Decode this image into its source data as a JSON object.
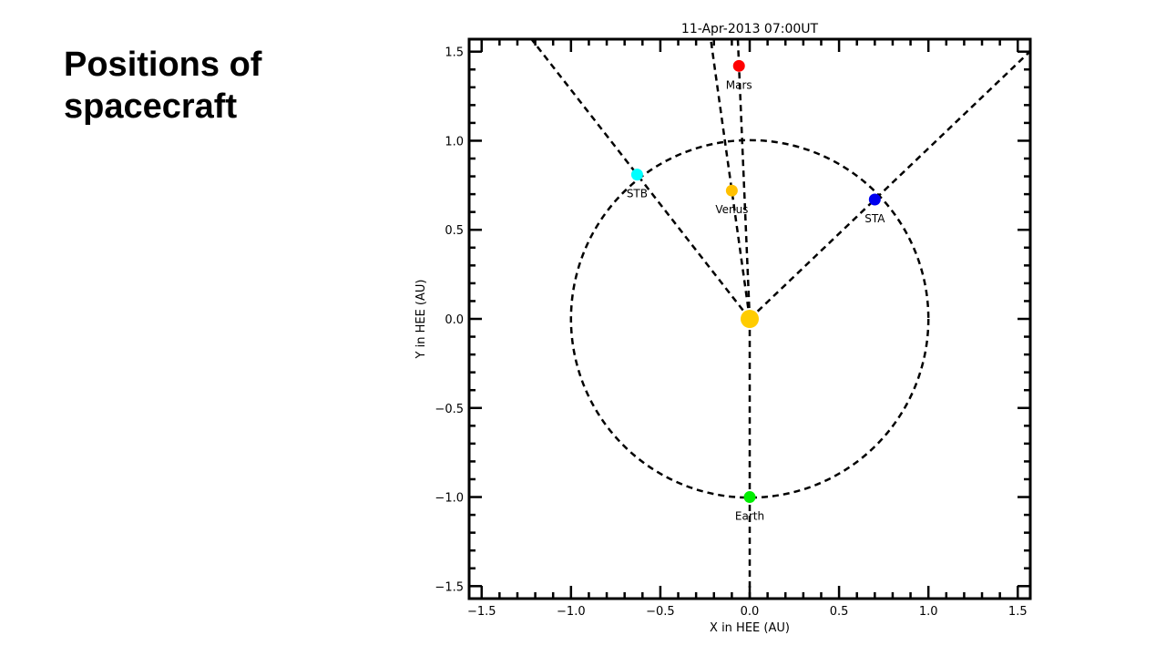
{
  "slide": {
    "title": "Positions of spacecraft"
  },
  "chart_data": {
    "type": "scatter",
    "title": "11-Apr-2013 07:00UT",
    "xlabel": "X in HEE (AU)",
    "ylabel": "Y in HEE (AU)",
    "xlim": [
      -1.57,
      1.57
    ],
    "ylim": [
      -1.57,
      1.57
    ],
    "xticks": [
      "-1.5",
      "-1.0",
      "-0.5",
      "0.0",
      "0.5",
      "1.0",
      "1.5"
    ],
    "yticks": [
      "-1.5",
      "-1.0",
      "-0.5",
      "0.0",
      "0.5",
      "1.0",
      "1.5"
    ],
    "xtick_values": [
      -1.5,
      -1.0,
      -0.5,
      0.0,
      0.5,
      1.0,
      1.5
    ],
    "ytick_values": [
      -1.5,
      -1.0,
      -0.5,
      0.0,
      0.5,
      1.0,
      1.5
    ],
    "orbit_radius": 1.0,
    "sun": {
      "x": 0,
      "y": 0,
      "color": "#ffcc00"
    },
    "points": [
      {
        "name": "Mars",
        "x": -0.06,
        "y": 1.42,
        "color": "#ff0000"
      },
      {
        "name": "STB",
        "x": -0.63,
        "y": 0.81,
        "color": "#00ffff"
      },
      {
        "name": "Venus",
        "x": -0.1,
        "y": 0.72,
        "color": "#ffc000"
      },
      {
        "name": "STA",
        "x": 0.7,
        "y": 0.67,
        "color": "#0000ee"
      },
      {
        "name": "Earth",
        "x": 0.0,
        "y": -1.0,
        "color": "#00ee00"
      }
    ]
  }
}
